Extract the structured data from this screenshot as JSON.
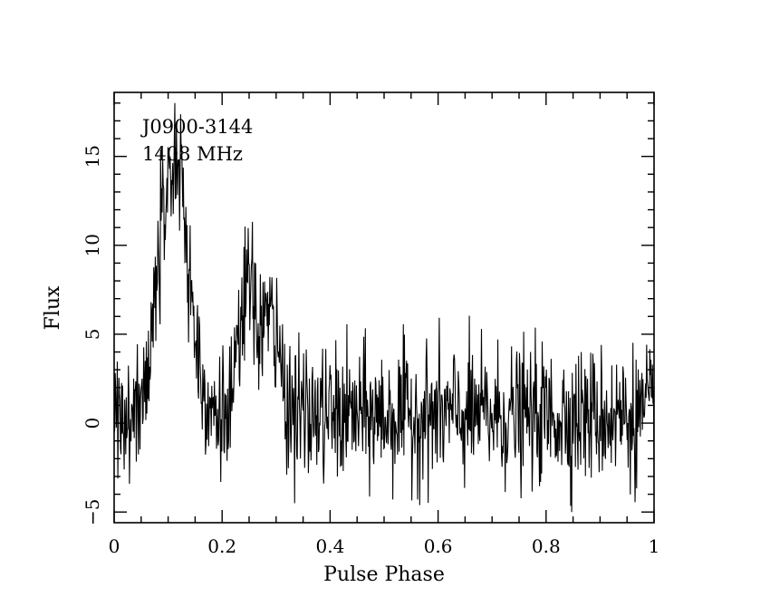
{
  "chart_data": {
    "type": "line",
    "title": "",
    "annotations": [
      "J0900-3144",
      "1408 MHz"
    ],
    "xlabel": "Pulse Phase",
    "ylabel": "Flux",
    "xlim": [
      0,
      1
    ],
    "ylim": [
      -5.6,
      18.6
    ],
    "xticks": [
      0,
      0.2,
      0.4,
      0.6,
      0.8,
      1
    ],
    "xtick_labels": [
      "0",
      "0.2",
      "0.4",
      "0.6",
      "0.8",
      "1"
    ],
    "yticks": [
      -5,
      0,
      5,
      10,
      15
    ],
    "ytick_labels": [
      "−5",
      "0",
      "5",
      "10",
      "15"
    ],
    "grid": false,
    "colors": {
      "line": "#000000",
      "frame": "#000000",
      "background": "#ffffff"
    },
    "profile_components": [
      {
        "center": 0.11,
        "width": 0.028,
        "peak": 14.5
      },
      {
        "center": 0.245,
        "width": 0.013,
        "peak": 6.5
      },
      {
        "center": 0.285,
        "width": 0.02,
        "peak": 5.5
      }
    ],
    "noise_rms": 1.9,
    "n_bins": 1024,
    "series": [
      {
        "x": [
          0.0,
          0.02,
          0.04,
          0.06,
          0.08,
          0.1,
          0.11,
          0.12,
          0.13,
          0.14,
          0.16,
          0.18,
          0.2,
          0.22,
          0.24,
          0.26,
          0.28,
          0.3,
          0.32,
          0.34,
          0.4,
          0.5,
          0.6,
          0.7,
          0.8,
          0.9,
          1.0
        ],
        "values": [
          1.0,
          1.5,
          2.5,
          5.0,
          10.0,
          13.0,
          15.0,
          14.0,
          10.0,
          4.0,
          1.5,
          1.0,
          1.0,
          4.0,
          8.0,
          5.0,
          6.0,
          6.0,
          1.5,
          0.5,
          0.5,
          0.5,
          0.5,
          0.5,
          0.5,
          0.5,
          0.5
        ]
      }
    ]
  }
}
